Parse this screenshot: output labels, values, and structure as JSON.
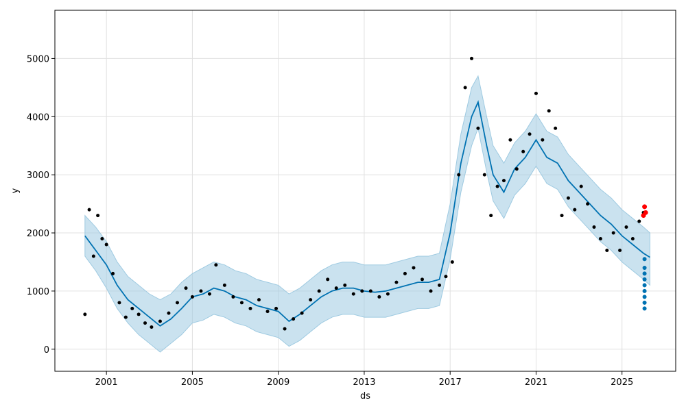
{
  "chart_data": {
    "type": "line",
    "title": "",
    "xlabel": "ds",
    "ylabel": "y",
    "grid": true,
    "xlim": [
      1998.6,
      2027.5
    ],
    "ylim": [
      -380,
      5830
    ],
    "x_ticks": [
      2001,
      2005,
      2009,
      2013,
      2017,
      2021,
      2025
    ],
    "x_tick_labels": [
      "2001",
      "2005",
      "2009",
      "2013",
      "2017",
      "2021",
      "2025"
    ],
    "y_ticks": [
      0,
      1000,
      2000,
      3000,
      4000,
      5000
    ],
    "y_tick_labels": [
      "0",
      "1000",
      "2000",
      "3000",
      "4000",
      "5000"
    ],
    "colors": {
      "observed": "#000000",
      "forecast": "#0072B2",
      "interval": "#9ecae1",
      "recent": "#ff0000"
    },
    "series": [
      {
        "role": "observed",
        "style": "points",
        "x": [
          2000.0,
          2000.2,
          2000.4,
          2000.6,
          2000.8,
          2001.0,
          2001.3,
          2001.6,
          2001.9,
          2002.2,
          2002.5,
          2002.8,
          2003.1,
          2003.5,
          2003.9,
          2004.3,
          2004.7,
          2005.0,
          2005.4,
          2005.8,
          2006.1,
          2006.5,
          2006.9,
          2007.3,
          2007.7,
          2008.1,
          2008.5,
          2008.9,
          2009.3,
          2009.7,
          2010.1,
          2010.5,
          2010.9,
          2011.3,
          2011.7,
          2012.1,
          2012.5,
          2012.9,
          2013.3,
          2013.7,
          2014.1,
          2014.5,
          2014.9,
          2015.3,
          2015.7,
          2016.1,
          2016.5,
          2016.8,
          2017.1,
          2017.4,
          2017.7,
          2018.0,
          2018.3,
          2018.6,
          2018.9,
          2019.2,
          2019.5,
          2019.8,
          2020.1,
          2020.4,
          2020.7,
          2021.0,
          2021.3,
          2021.6,
          2021.9,
          2022.2,
          2022.5,
          2022.8,
          2023.1,
          2023.4,
          2023.7,
          2024.0,
          2024.3,
          2024.6,
          2024.9,
          2025.2,
          2025.5,
          2025.8,
          2026.0
        ],
        "y": [
          600,
          2400,
          1600,
          2300,
          1900,
          1800,
          1300,
          800,
          550,
          700,
          600,
          450,
          380,
          480,
          620,
          800,
          1050,
          900,
          1000,
          950,
          1450,
          1100,
          900,
          800,
          700,
          850,
          650,
          700,
          350,
          520,
          620,
          850,
          1000,
          1200,
          1050,
          1100,
          950,
          1000,
          1000,
          900,
          950,
          1150,
          1300,
          1400,
          1200,
          1000,
          1100,
          1250,
          1500,
          3000,
          4500,
          5000,
          3800,
          3000,
          2300,
          2800,
          2900,
          3600,
          3100,
          3400,
          3700,
          4400,
          3600,
          4100,
          3800,
          2300,
          2600,
          2400,
          2800,
          2500,
          2100,
          1900,
          1700,
          2000,
          1700,
          2100,
          1900,
          2200,
          2350
        ]
      },
      {
        "role": "recent",
        "style": "points",
        "x": [
          2026.0,
          2026.05,
          2026.1
        ],
        "y": [
          2300,
          2450,
          2350
        ]
      },
      {
        "role": "forecast",
        "style": "line",
        "x": [
          2000.0,
          2000.5,
          2001.0,
          2001.5,
          2002.0,
          2002.5,
          2003.0,
          2003.5,
          2004.0,
          2004.5,
          2005.0,
          2005.5,
          2006.0,
          2006.5,
          2007.0,
          2007.5,
          2008.0,
          2008.5,
          2009.0,
          2009.5,
          2010.0,
          2010.5,
          2011.0,
          2011.5,
          2012.0,
          2012.5,
          2013.0,
          2013.5,
          2014.0,
          2014.5,
          2015.0,
          2015.5,
          2016.0,
          2016.5,
          2017.0,
          2017.5,
          2018.0,
          2018.3,
          2018.7,
          2019.0,
          2019.5,
          2020.0,
          2020.5,
          2021.0,
          2021.5,
          2022.0,
          2022.5,
          2023.0,
          2023.5,
          2024.0,
          2024.5,
          2025.0,
          2025.5,
          2026.0,
          2026.3
        ],
        "y": [
          1950,
          1700,
          1450,
          1100,
          850,
          700,
          550,
          400,
          520,
          700,
          900,
          950,
          1050,
          1000,
          900,
          850,
          750,
          700,
          650,
          480,
          600,
          750,
          900,
          1000,
          1050,
          1050,
          1000,
          980,
          1000,
          1050,
          1100,
          1150,
          1150,
          1200,
          2000,
          3200,
          4000,
          4250,
          3500,
          3000,
          2700,
          3100,
          3300,
          3600,
          3300,
          3200,
          2900,
          2700,
          2500,
          2300,
          2150,
          1950,
          1800,
          1650,
          1580
        ]
      },
      {
        "role": "interval_upper",
        "style": "band",
        "x": [
          2000.0,
          2000.5,
          2001.0,
          2001.5,
          2002.0,
          2002.5,
          2003.0,
          2003.5,
          2004.0,
          2004.5,
          2005.0,
          2005.5,
          2006.0,
          2006.5,
          2007.0,
          2007.5,
          2008.0,
          2008.5,
          2009.0,
          2009.5,
          2010.0,
          2010.5,
          2011.0,
          2011.5,
          2012.0,
          2012.5,
          2013.0,
          2013.5,
          2014.0,
          2014.5,
          2015.0,
          2015.5,
          2016.0,
          2016.5,
          2017.0,
          2017.5,
          2018.0,
          2018.3,
          2018.7,
          2019.0,
          2019.5,
          2020.0,
          2020.5,
          2021.0,
          2021.5,
          2022.0,
          2022.5,
          2023.0,
          2023.5,
          2024.0,
          2024.5,
          2025.0,
          2025.5,
          2026.0,
          2026.3
        ],
        "y": [
          2300,
          2100,
          1850,
          1500,
          1250,
          1100,
          950,
          850,
          950,
          1150,
          1300,
          1400,
          1500,
          1450,
          1350,
          1300,
          1200,
          1150,
          1100,
          950,
          1050,
          1200,
          1350,
          1450,
          1500,
          1500,
          1450,
          1450,
          1450,
          1500,
          1550,
          1600,
          1600,
          1650,
          2500,
          3700,
          4500,
          4700,
          4000,
          3500,
          3200,
          3550,
          3750,
          4050,
          3750,
          3650,
          3350,
          3150,
          2950,
          2750,
          2600,
          2400,
          2250,
          2100,
          2000
        ]
      },
      {
        "role": "interval_lower",
        "style": "band",
        "x": [
          2000.0,
          2000.5,
          2001.0,
          2001.5,
          2002.0,
          2002.5,
          2003.0,
          2003.5,
          2004.0,
          2004.5,
          2005.0,
          2005.5,
          2006.0,
          2006.5,
          2007.0,
          2007.5,
          2008.0,
          2008.5,
          2009.0,
          2009.5,
          2010.0,
          2010.5,
          2011.0,
          2011.5,
          2012.0,
          2012.5,
          2013.0,
          2013.5,
          2014.0,
          2014.5,
          2015.0,
          2015.5,
          2016.0,
          2016.5,
          2017.0,
          2017.5,
          2018.0,
          2018.3,
          2018.7,
          2019.0,
          2019.5,
          2020.0,
          2020.5,
          2021.0,
          2021.5,
          2022.0,
          2022.5,
          2023.0,
          2023.5,
          2024.0,
          2024.5,
          2025.0,
          2025.5,
          2026.0,
          2026.3
        ],
        "y": [
          1600,
          1350,
          1050,
          700,
          450,
          250,
          100,
          -50,
          100,
          250,
          450,
          500,
          600,
          550,
          450,
          400,
          300,
          250,
          200,
          50,
          150,
          300,
          450,
          550,
          600,
          600,
          550,
          550,
          550,
          600,
          650,
          700,
          700,
          750,
          1550,
          2700,
          3500,
          3800,
          3050,
          2550,
          2250,
          2650,
          2850,
          3150,
          2850,
          2750,
          2450,
          2250,
          2050,
          1850,
          1700,
          1500,
          1350,
          1200,
          1100
        ]
      },
      {
        "role": "forecast_tail",
        "style": "points",
        "x": [
          2026.05,
          2026.05,
          2026.05,
          2026.05,
          2026.05,
          2026.05,
          2026.05,
          2026.05,
          2026.05
        ],
        "y": [
          700,
          800,
          900,
          1000,
          1100,
          1200,
          1300,
          1400,
          1550
        ]
      }
    ]
  }
}
